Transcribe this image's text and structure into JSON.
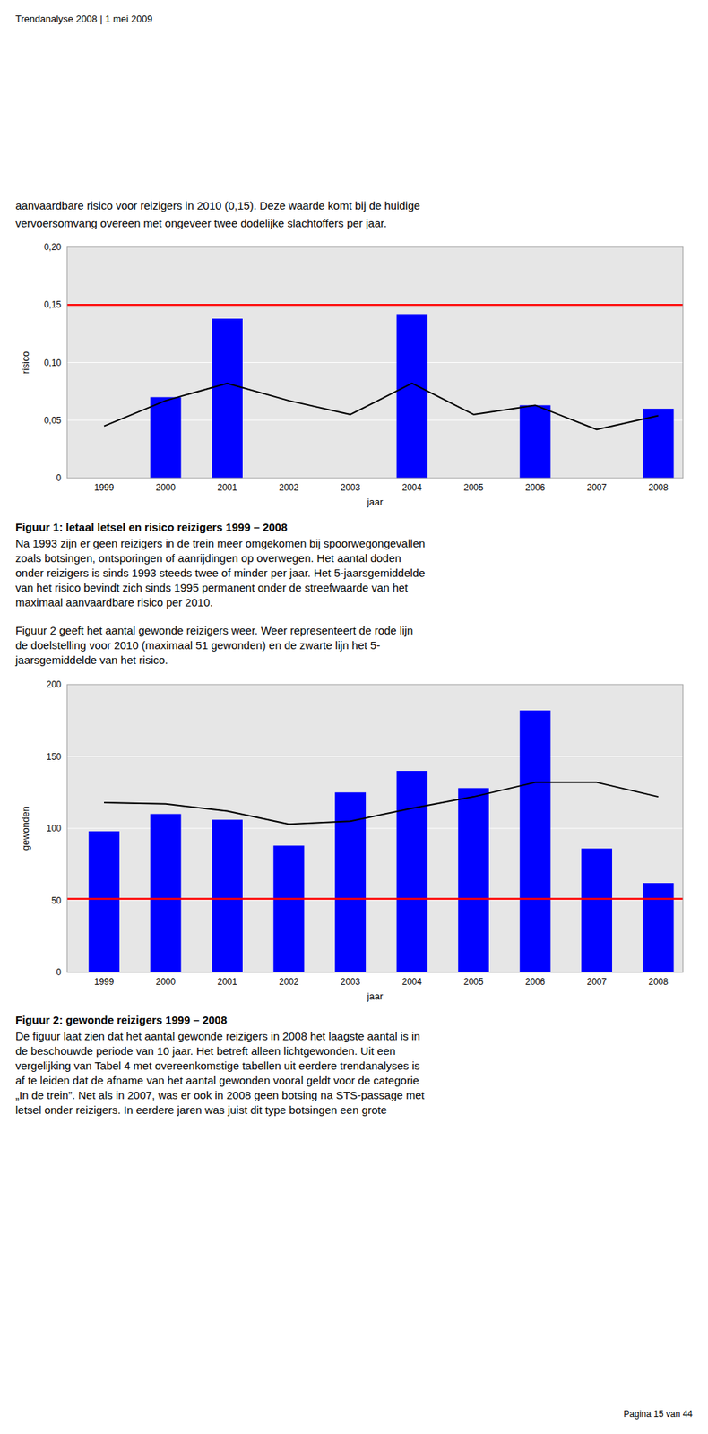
{
  "header": "Trendanalyse 2008 | 1 mei 2009",
  "intro": [
    "aanvaardbare risico voor reizigers in 2010 (0,15). Deze waarde komt bij de huidige",
    "vervoersomvang overeen met ongeveer twee dodelijke slachtoffers per jaar."
  ],
  "chart_data": [
    {
      "type": "bar",
      "categories": [
        "1999",
        "2000",
        "2001",
        "2002",
        "2003",
        "2004",
        "2005",
        "2006",
        "2007",
        "2008"
      ],
      "series": [
        {
          "type": "bar",
          "color": "#0000ff",
          "values": [
            0,
            0.07,
            0.138,
            0,
            0,
            0.142,
            0,
            0.063,
            0,
            0.06
          ]
        },
        {
          "type": "line",
          "color": "#000000",
          "values": [
            0.045,
            0.067,
            0.082,
            0.067,
            0.055,
            0.082,
            0.055,
            0.063,
            0.042,
            0.054
          ]
        }
      ],
      "hlines": [
        {
          "value": 0.15,
          "color": "#ff0000"
        }
      ],
      "ylim": [
        0,
        0.2
      ],
      "yticks": [
        0,
        {
          "value": 0.05,
          "label": "0,05"
        },
        {
          "value": 0.1,
          "label": "0,10"
        },
        {
          "value": 0.15,
          "label": "0,15"
        },
        {
          "value": 0.2,
          "label": "0,20"
        }
      ],
      "ylabel": "risico",
      "xlabel": "jaar",
      "grid": true,
      "caption_title": "Figuur 1: letaal letsel en risico reizigers 1999 – 2008",
      "caption": [
        "Na 1993 zijn er geen reizigers in de trein meer omgekomen bij spoorwegongevallen",
        "zoals botsingen, ontsporingen of aanrijdingen op overwegen. Het aantal doden",
        "onder reizigers is sinds 1993 steeds twee of minder per jaar. Het 5-jaarsgemiddelde",
        "van het risico bevindt zich sinds 1995 permanent onder de streefwaarde van het",
        "maximaal aanvaardbare risico per 2010."
      ]
    },
    {
      "type": "bar",
      "categories": [
        "1999",
        "2000",
        "2001",
        "2002",
        "2003",
        "2004",
        "2005",
        "2006",
        "2007",
        "2008"
      ],
      "series": [
        {
          "type": "bar",
          "color": "#0000ff",
          "values": [
            98,
            110,
            106,
            88,
            125,
            140,
            128,
            182,
            86,
            62
          ]
        },
        {
          "type": "line",
          "color": "#000000",
          "values": [
            118,
            117,
            112,
            103,
            105,
            114,
            122,
            132,
            132,
            122
          ]
        }
      ],
      "hlines": [
        {
          "value": 51,
          "color": "#ff0000"
        }
      ],
      "ylim": [
        0,
        200
      ],
      "yticks": [
        0,
        50,
        100,
        150,
        200
      ],
      "ylabel": "gewonden",
      "xlabel": "jaar",
      "grid": true,
      "caption_title": "Figuur 2: gewonde reizigers 1999 – 2008",
      "caption": [
        "De figuur laat zien dat het aantal gewonde reizigers in 2008 het laagste aantal is in",
        "de beschouwde periode van 10 jaar. Het betreft alleen lichtgewonden. Uit een",
        "vergelijking van Tabel 4 met overeenkomstige tabellen uit eerdere trendanalyses is",
        "af te leiden dat de afname van het aantal gewonden vooral geldt voor de categorie",
        "„In de trein”. Net als in 2007, was er ook in 2008 geen botsing na STS-passage met",
        "letsel onder reizigers. In eerdere jaren was juist dit type botsingen een grote"
      ]
    }
  ],
  "mid_text": [
    "Figuur 2 geeft het aantal gewonde reizigers weer. Weer representeert de rode lijn",
    "de doelstelling voor 2010 (maximaal 51 gewonden) en de zwarte lijn het 5-",
    "jaarsgemiddelde van het risico."
  ],
  "footer": "Pagina 15 van 44"
}
